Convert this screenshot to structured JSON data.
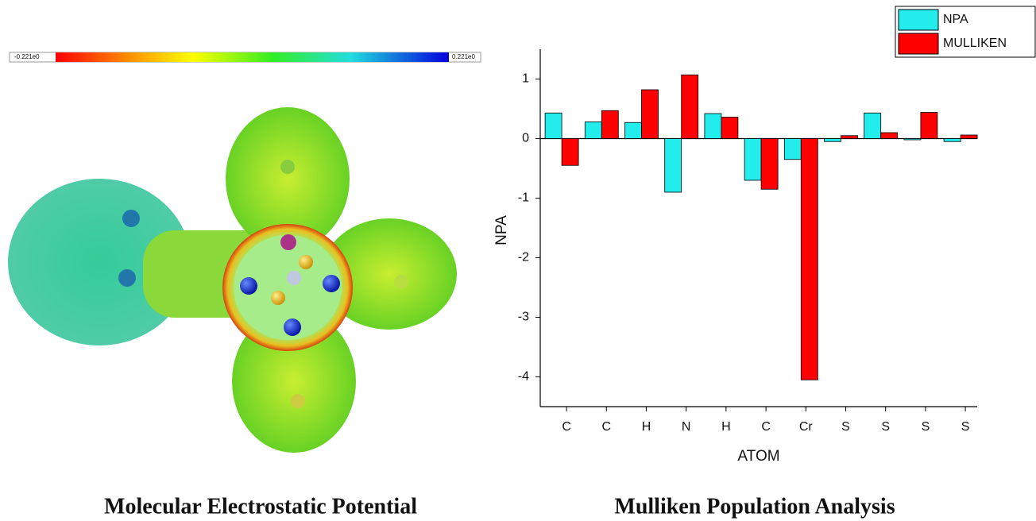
{
  "colorbar": {
    "min_label": "-0.221e0",
    "max_label": "0.221e0"
  },
  "captions": [
    "Molecular Electrostatic Potential",
    "Mulliken Population Analysis"
  ],
  "chart_data": {
    "type": "bar",
    "x_label": "ATOM",
    "y_label": "NPA",
    "categories": [
      "C",
      "C",
      "H",
      "N",
      "H",
      "C",
      "Cr",
      "S",
      "S",
      "S",
      "S"
    ],
    "series": [
      {
        "name": "NPA",
        "color": "#22ecec",
        "values": [
          0.43,
          0.28,
          0.27,
          -0.9,
          0.42,
          -0.7,
          -0.35,
          -0.05,
          0.43,
          -0.02,
          -0.05
        ]
      },
      {
        "name": "MULLIKEN",
        "color": "#ff0000",
        "values": [
          -0.45,
          0.47,
          0.82,
          1.07,
          0.36,
          -0.85,
          -4.05,
          0.05,
          0.1,
          0.44,
          0.06
        ]
      }
    ],
    "ylim": [
      -4.5,
      1.5
    ],
    "yticks": [
      -4,
      -3,
      -2,
      -1,
      0,
      1
    ],
    "legend": "top-right"
  }
}
